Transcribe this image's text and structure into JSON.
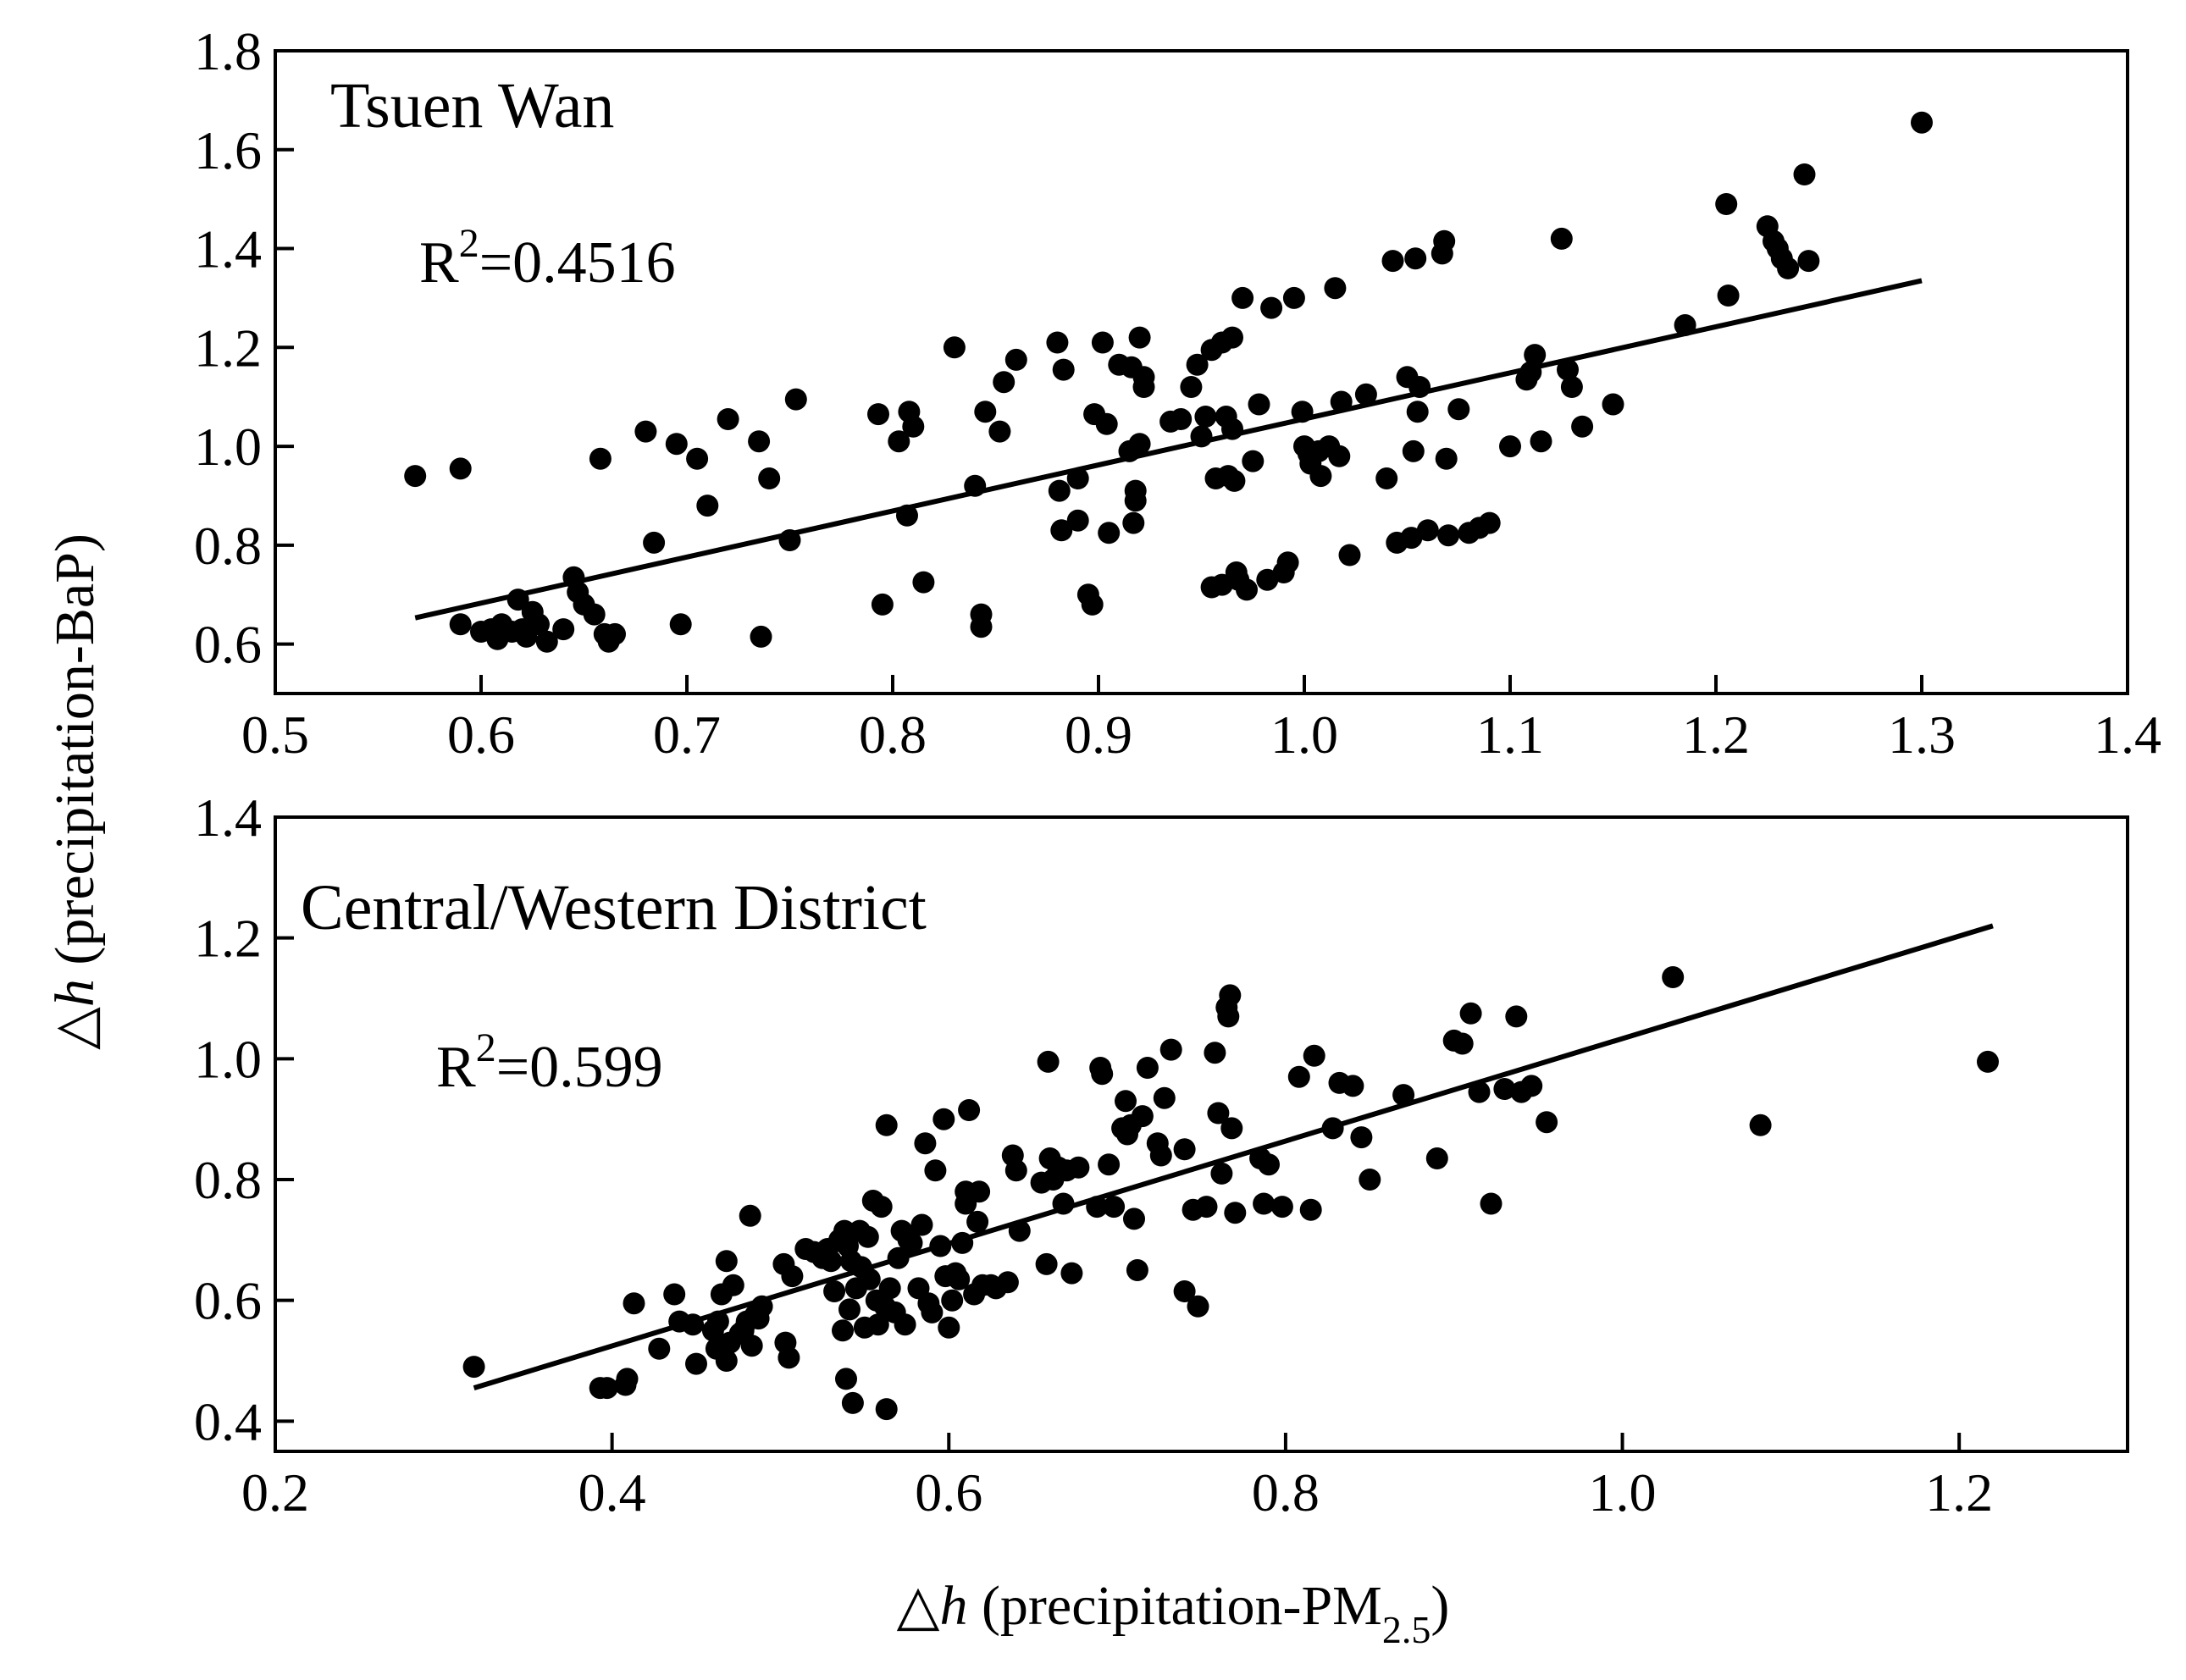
{
  "figure": {
    "ylabel_symbol": "△",
    "ylabel_var": "h",
    "ylabel_text": " (precipitation-BaP)",
    "xlabel_symbol": "△",
    "xlabel_var": "h",
    "xlabel_text": " (precipitation-PM",
    "xlabel_sub": "2.5",
    "xlabel_close": ")"
  },
  "chart_data": [
    {
      "type": "scatter",
      "title": "Tsuen Wan",
      "r2_text": "R",
      "r2_sup": "2",
      "r2_value": "=0.4516",
      "xlim": [
        0.5,
        1.4
      ],
      "ylim": [
        0.5,
        1.8
      ],
      "xticks": [
        0.5,
        0.6,
        0.7,
        0.8,
        0.9,
        1.0,
        1.1,
        1.2,
        1.3,
        1.4
      ],
      "xtick_labels": [
        "0.5",
        "0.6",
        "0.7",
        "0.8",
        "0.9",
        "1.0",
        "1.1",
        "1.2",
        "1.3",
        "1.4"
      ],
      "yticks": [
        0.6,
        0.8,
        1.0,
        1.2,
        1.4,
        1.6,
        1.8
      ],
      "ytick_labels": [
        "0.6",
        "0.8",
        "1.0",
        "1.2",
        "1.4",
        "1.6",
        "1.8"
      ],
      "fit_line": [
        [
          0.568,
          0.653
        ],
        [
          1.3,
          1.335
        ]
      ],
      "points": [
        [
          0.568,
          0.94
        ],
        [
          0.59,
          0.955
        ],
        [
          0.59,
          0.64
        ],
        [
          0.6,
          0.625
        ],
        [
          0.605,
          0.63
        ],
        [
          0.608,
          0.61
        ],
        [
          0.61,
          0.64
        ],
        [
          0.615,
          0.625
        ],
        [
          0.618,
          0.69
        ],
        [
          0.62,
          0.63
        ],
        [
          0.622,
          0.615
        ],
        [
          0.625,
          0.665
        ],
        [
          0.628,
          0.64
        ],
        [
          0.632,
          0.605
        ],
        [
          0.64,
          0.63
        ],
        [
          0.645,
          0.735
        ],
        [
          0.647,
          0.705
        ],
        [
          0.65,
          0.68
        ],
        [
          0.655,
          0.66
        ],
        [
          0.658,
          0.975
        ],
        [
          0.66,
          0.62
        ],
        [
          0.662,
          0.605
        ],
        [
          0.665,
          0.62
        ],
        [
          0.68,
          1.03
        ],
        [
          0.684,
          0.805
        ],
        [
          0.695,
          1.005
        ],
        [
          0.697,
          0.64
        ],
        [
          0.705,
          0.975
        ],
        [
          0.71,
          0.88
        ],
        [
          0.72,
          1.055
        ],
        [
          0.735,
          1.01
        ],
        [
          0.736,
          0.615
        ],
        [
          0.74,
          0.935
        ],
        [
          0.75,
          0.81
        ],
        [
          0.753,
          1.095
        ],
        [
          0.793,
          1.065
        ],
        [
          0.795,
          0.68
        ],
        [
          0.803,
          1.01
        ],
        [
          0.807,
          0.86
        ],
        [
          0.808,
          1.07
        ],
        [
          0.81,
          1.04
        ],
        [
          0.815,
          0.725
        ],
        [
          0.83,
          1.2
        ],
        [
          0.84,
          0.92
        ],
        [
          0.843,
          0.66
        ],
        [
          0.843,
          0.635
        ],
        [
          0.845,
          1.07
        ],
        [
          0.852,
          1.03
        ],
        [
          0.854,
          1.13
        ],
        [
          0.86,
          1.175
        ],
        [
          0.88,
          1.21
        ],
        [
          0.881,
          0.91
        ],
        [
          0.882,
          0.83
        ],
        [
          0.883,
          1.155
        ],
        [
          0.89,
          0.935
        ],
        [
          0.89,
          0.85
        ],
        [
          0.895,
          0.7
        ],
        [
          0.897,
          0.68
        ],
        [
          0.898,
          1.065
        ],
        [
          0.902,
          1.21
        ],
        [
          0.904,
          1.045
        ],
        [
          0.905,
          0.825
        ],
        [
          0.91,
          1.165
        ],
        [
          0.915,
          0.99
        ],
        [
          0.916,
          1.16
        ],
        [
          0.917,
          0.845
        ],
        [
          0.918,
          0.91
        ],
        [
          0.918,
          0.89
        ],
        [
          0.92,
          1.22
        ],
        [
          0.92,
          1.005
        ],
        [
          0.922,
          1.14
        ],
        [
          0.922,
          1.12
        ],
        [
          0.935,
          1.05
        ],
        [
          0.94,
          1.055
        ],
        [
          0.945,
          1.12
        ],
        [
          0.948,
          1.165
        ],
        [
          0.95,
          1.02
        ],
        [
          0.952,
          1.06
        ],
        [
          0.955,
          1.195
        ],
        [
          0.955,
          0.715
        ],
        [
          0.957,
          0.935
        ],
        [
          0.96,
          1.21
        ],
        [
          0.96,
          0.72
        ],
        [
          0.962,
          1.06
        ],
        [
          0.963,
          0.94
        ],
        [
          0.965,
          1.22
        ],
        [
          0.965,
          1.035
        ],
        [
          0.966,
          0.93
        ],
        [
          0.967,
          0.745
        ],
        [
          0.968,
          0.73
        ],
        [
          0.97,
          1.3
        ],
        [
          0.972,
          0.71
        ],
        [
          0.975,
          0.97
        ],
        [
          0.978,
          1.085
        ],
        [
          0.982,
          0.73
        ],
        [
          0.984,
          1.28
        ],
        [
          0.99,
          0.745
        ],
        [
          0.992,
          0.765
        ],
        [
          0.995,
          1.3
        ],
        [
          0.999,
          1.07
        ],
        [
          1.0,
          1.0
        ],
        [
          1.002,
          0.985
        ],
        [
          1.003,
          0.965
        ],
        [
          1.007,
          0.99
        ],
        [
          1.008,
          0.94
        ],
        [
          1.012,
          1.0
        ],
        [
          1.015,
          1.32
        ],
        [
          1.017,
          0.98
        ],
        [
          1.018,
          1.09
        ],
        [
          1.022,
          0.78
        ],
        [
          1.03,
          1.105
        ],
        [
          1.04,
          0.935
        ],
        [
          1.043,
          1.375
        ],
        [
          1.045,
          0.805
        ],
        [
          1.05,
          1.14
        ],
        [
          1.052,
          0.815
        ],
        [
          1.053,
          0.99
        ],
        [
          1.054,
          1.38
        ],
        [
          1.055,
          1.07
        ],
        [
          1.056,
          1.12
        ],
        [
          1.06,
          0.83
        ],
        [
          1.067,
          1.39
        ],
        [
          1.068,
          1.415
        ],
        [
          1.069,
          0.975
        ],
        [
          1.07,
          0.82
        ],
        [
          1.075,
          1.075
        ],
        [
          1.08,
          0.825
        ],
        [
          1.085,
          0.835
        ],
        [
          1.09,
          0.845
        ],
        [
          1.1,
          1.0
        ],
        [
          1.108,
          1.135
        ],
        [
          1.11,
          1.15
        ],
        [
          1.112,
          1.185
        ],
        [
          1.115,
          1.01
        ],
        [
          1.125,
          1.42
        ],
        [
          1.128,
          1.155
        ],
        [
          1.13,
          1.12
        ],
        [
          1.135,
          1.04
        ],
        [
          1.15,
          1.085
        ],
        [
          1.185,
          1.245
        ],
        [
          1.205,
          1.49
        ],
        [
          1.206,
          1.305
        ],
        [
          1.225,
          1.445
        ],
        [
          1.228,
          1.415
        ],
        [
          1.23,
          1.4
        ],
        [
          1.232,
          1.38
        ],
        [
          1.235,
          1.36
        ],
        [
          1.243,
          1.55
        ],
        [
          1.245,
          1.375
        ],
        [
          1.3,
          1.655
        ]
      ]
    },
    {
      "type": "scatter",
      "title": "Central/Western District",
      "r2_text": "R",
      "r2_sup": "2",
      "r2_value": "=0.599",
      "xlim": [
        0.2,
        1.3
      ],
      "ylim": [
        0.35,
        1.4
      ],
      "xticks": [
        0.2,
        0.4,
        0.6,
        0.8,
        1.0,
        1.2
      ],
      "xtick_labels": [
        "0.2",
        "0.4",
        "0.6",
        "0.8",
        "1.0",
        "1.2"
      ],
      "yticks": [
        0.4,
        0.6,
        0.8,
        1.0,
        1.2,
        1.4
      ],
      "ytick_labels": [
        "0.4",
        "0.6",
        "0.8",
        "1.0",
        "1.2",
        "1.4"
      ],
      "fit_line": [
        [
          0.318,
          0.455
        ],
        [
          1.22,
          1.22
        ]
      ],
      "points": [
        [
          0.318,
          0.49
        ],
        [
          0.393,
          0.455
        ],
        [
          0.397,
          0.455
        ],
        [
          0.408,
          0.46
        ],
        [
          0.409,
          0.47
        ],
        [
          0.413,
          0.595
        ],
        [
          0.428,
          0.52
        ],
        [
          0.437,
          0.61
        ],
        [
          0.44,
          0.565
        ],
        [
          0.448,
          0.56
        ],
        [
          0.45,
          0.495
        ],
        [
          0.46,
          0.55
        ],
        [
          0.462,
          0.52
        ],
        [
          0.463,
          0.565
        ],
        [
          0.465,
          0.61
        ],
        [
          0.468,
          0.5
        ],
        [
          0.468,
          0.665
        ],
        [
          0.47,
          0.53
        ],
        [
          0.472,
          0.625
        ],
        [
          0.476,
          0.545
        ],
        [
          0.478,
          0.55
        ],
        [
          0.48,
          0.565
        ],
        [
          0.482,
          0.74
        ],
        [
          0.483,
          0.525
        ],
        [
          0.485,
          0.575
        ],
        [
          0.487,
          0.57
        ],
        [
          0.489,
          0.59
        ],
        [
          0.502,
          0.66
        ],
        [
          0.503,
          0.53
        ],
        [
          0.505,
          0.505
        ],
        [
          0.507,
          0.64
        ],
        [
          0.515,
          0.685
        ],
        [
          0.52,
          0.68
        ],
        [
          0.525,
          0.67
        ],
        [
          0.528,
          0.685
        ],
        [
          0.53,
          0.665
        ],
        [
          0.532,
          0.615
        ],
        [
          0.535,
          0.7
        ],
        [
          0.537,
          0.55
        ],
        [
          0.538,
          0.715
        ],
        [
          0.539,
          0.47
        ],
        [
          0.54,
          0.69
        ],
        [
          0.541,
          0.585
        ],
        [
          0.542,
          0.665
        ],
        [
          0.543,
          0.43
        ],
        [
          0.545,
          0.62
        ],
        [
          0.547,
          0.715
        ],
        [
          0.548,
          0.655
        ],
        [
          0.55,
          0.555
        ],
        [
          0.552,
          0.705
        ],
        [
          0.553,
          0.635
        ],
        [
          0.555,
          0.765
        ],
        [
          0.557,
          0.6
        ],
        [
          0.558,
          0.56
        ],
        [
          0.56,
          0.755
        ],
        [
          0.562,
          0.59
        ],
        [
          0.563,
          0.89
        ],
        [
          0.563,
          0.42
        ],
        [
          0.565,
          0.62
        ],
        [
          0.568,
          0.58
        ],
        [
          0.57,
          0.67
        ],
        [
          0.572,
          0.715
        ],
        [
          0.574,
          0.56
        ],
        [
          0.576,
          0.7
        ],
        [
          0.578,
          0.695
        ],
        [
          0.582,
          0.62
        ],
        [
          0.584,
          0.725
        ],
        [
          0.586,
          0.86
        ],
        [
          0.588,
          0.595
        ],
        [
          0.59,
          0.58
        ],
        [
          0.592,
          0.815
        ],
        [
          0.595,
          0.69
        ],
        [
          0.597,
          0.9
        ],
        [
          0.598,
          0.64
        ],
        [
          0.6,
          0.555
        ],
        [
          0.602,
          0.6
        ],
        [
          0.604,
          0.645
        ],
        [
          0.606,
          0.635
        ],
        [
          0.608,
          0.695
        ],
        [
          0.61,
          0.76
        ],
        [
          0.61,
          0.78
        ],
        [
          0.612,
          0.915
        ],
        [
          0.615,
          0.61
        ],
        [
          0.617,
          0.73
        ],
        [
          0.618,
          0.78
        ],
        [
          0.62,
          0.625
        ],
        [
          0.625,
          0.625
        ],
        [
          0.628,
          0.62
        ],
        [
          0.635,
          0.63
        ],
        [
          0.638,
          0.84
        ],
        [
          0.64,
          0.815
        ],
        [
          0.642,
          0.715
        ],
        [
          0.655,
          0.795
        ],
        [
          0.658,
          0.66
        ],
        [
          0.659,
          0.995
        ],
        [
          0.66,
          0.835
        ],
        [
          0.662,
          0.8
        ],
        [
          0.665,
          0.82
        ],
        [
          0.668,
          0.76
        ],
        [
          0.67,
          0.815
        ],
        [
          0.673,
          0.645
        ],
        [
          0.677,
          0.82
        ],
        [
          0.688,
          0.755
        ],
        [
          0.69,
          0.985
        ],
        [
          0.691,
          0.975
        ],
        [
          0.695,
          0.825
        ],
        [
          0.698,
          0.755
        ],
        [
          0.703,
          0.885
        ],
        [
          0.705,
          0.93
        ],
        [
          0.706,
          0.875
        ],
        [
          0.708,
          0.89
        ],
        [
          0.71,
          0.735
        ],
        [
          0.712,
          0.65
        ],
        [
          0.715,
          0.905
        ],
        [
          0.718,
          0.985
        ],
        [
          0.724,
          0.86
        ],
        [
          0.726,
          0.84
        ],
        [
          0.728,
          0.935
        ],
        [
          0.732,
          1.015
        ],
        [
          0.74,
          0.85
        ],
        [
          0.74,
          0.615
        ],
        [
          0.745,
          0.75
        ],
        [
          0.748,
          0.59
        ],
        [
          0.753,
          0.755
        ],
        [
          0.758,
          1.01
        ],
        [
          0.76,
          0.91
        ],
        [
          0.762,
          0.81
        ],
        [
          0.765,
          1.085
        ],
        [
          0.766,
          1.07
        ],
        [
          0.767,
          1.105
        ],
        [
          0.768,
          0.885
        ],
        [
          0.77,
          0.745
        ],
        [
          0.785,
          0.835
        ],
        [
          0.787,
          0.76
        ],
        [
          0.79,
          0.825
        ],
        [
          0.798,
          0.755
        ],
        [
          0.808,
          0.97
        ],
        [
          0.815,
          0.75
        ],
        [
          0.817,
          1.005
        ],
        [
          0.828,
          0.885
        ],
        [
          0.832,
          0.96
        ],
        [
          0.84,
          0.955
        ],
        [
          0.845,
          0.87
        ],
        [
          0.85,
          0.8
        ],
        [
          0.87,
          0.94
        ],
        [
          0.89,
          0.835
        ],
        [
          0.9,
          1.03
        ],
        [
          0.905,
          1.025
        ],
        [
          0.91,
          1.075
        ],
        [
          0.915,
          0.945
        ],
        [
          0.922,
          0.76
        ],
        [
          0.93,
          0.95
        ],
        [
          0.937,
          1.07
        ],
        [
          0.94,
          0.945
        ],
        [
          0.946,
          0.955
        ],
        [
          0.955,
          0.895
        ],
        [
          1.03,
          1.135
        ],
        [
          1.082,
          0.89
        ],
        [
          1.217,
          0.995
        ]
      ]
    }
  ]
}
